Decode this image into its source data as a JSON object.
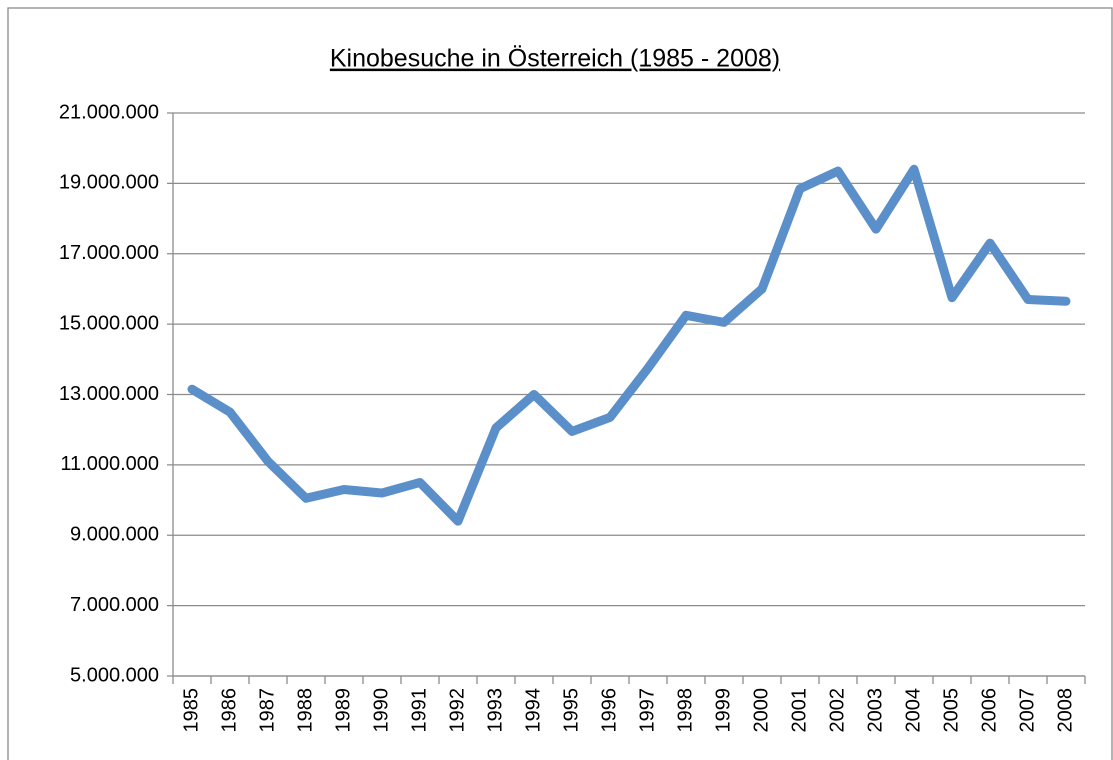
{
  "chart_data": {
    "type": "line",
    "title": "Kinobesuche in Österreich (1985 - 2008)",
    "categories": [
      "1985",
      "1986",
      "1987",
      "1988",
      "1989",
      "1990",
      "1991",
      "1992",
      "1993",
      "1994",
      "1995",
      "1996",
      "1997",
      "1998",
      "1999",
      "2000",
      "2001",
      "2002",
      "2003",
      "2004",
      "2005",
      "2006",
      "2007",
      "2008"
    ],
    "series": [
      {
        "name": "Kinobesuche",
        "color": "#5b8fca",
        "values": [
          13150000,
          12500000,
          11100000,
          10050000,
          10300000,
          10200000,
          10500000,
          9400000,
          12050000,
          13000000,
          11950000,
          12350000,
          13750000,
          15250000,
          15050000,
          16000000,
          18850000,
          19350000,
          17700000,
          19400000,
          15750000,
          17300000,
          15700000,
          15650000
        ]
      }
    ],
    "ylim": [
      5000000,
      21000000
    ],
    "yticks": [
      {
        "value": 5000000,
        "label": "5.000.000"
      },
      {
        "value": 7000000,
        "label": "7.000.000"
      },
      {
        "value": 9000000,
        "label": "9.000.000"
      },
      {
        "value": 11000000,
        "label": "11.000.000"
      },
      {
        "value": 13000000,
        "label": "13.000.000"
      },
      {
        "value": 15000000,
        "label": "15.000.000"
      },
      {
        "value": 17000000,
        "label": "17.000.000"
      },
      {
        "value": 19000000,
        "label": "19.000.000"
      },
      {
        "value": 21000000,
        "label": "21.000.000"
      }
    ],
    "grid": true
  }
}
